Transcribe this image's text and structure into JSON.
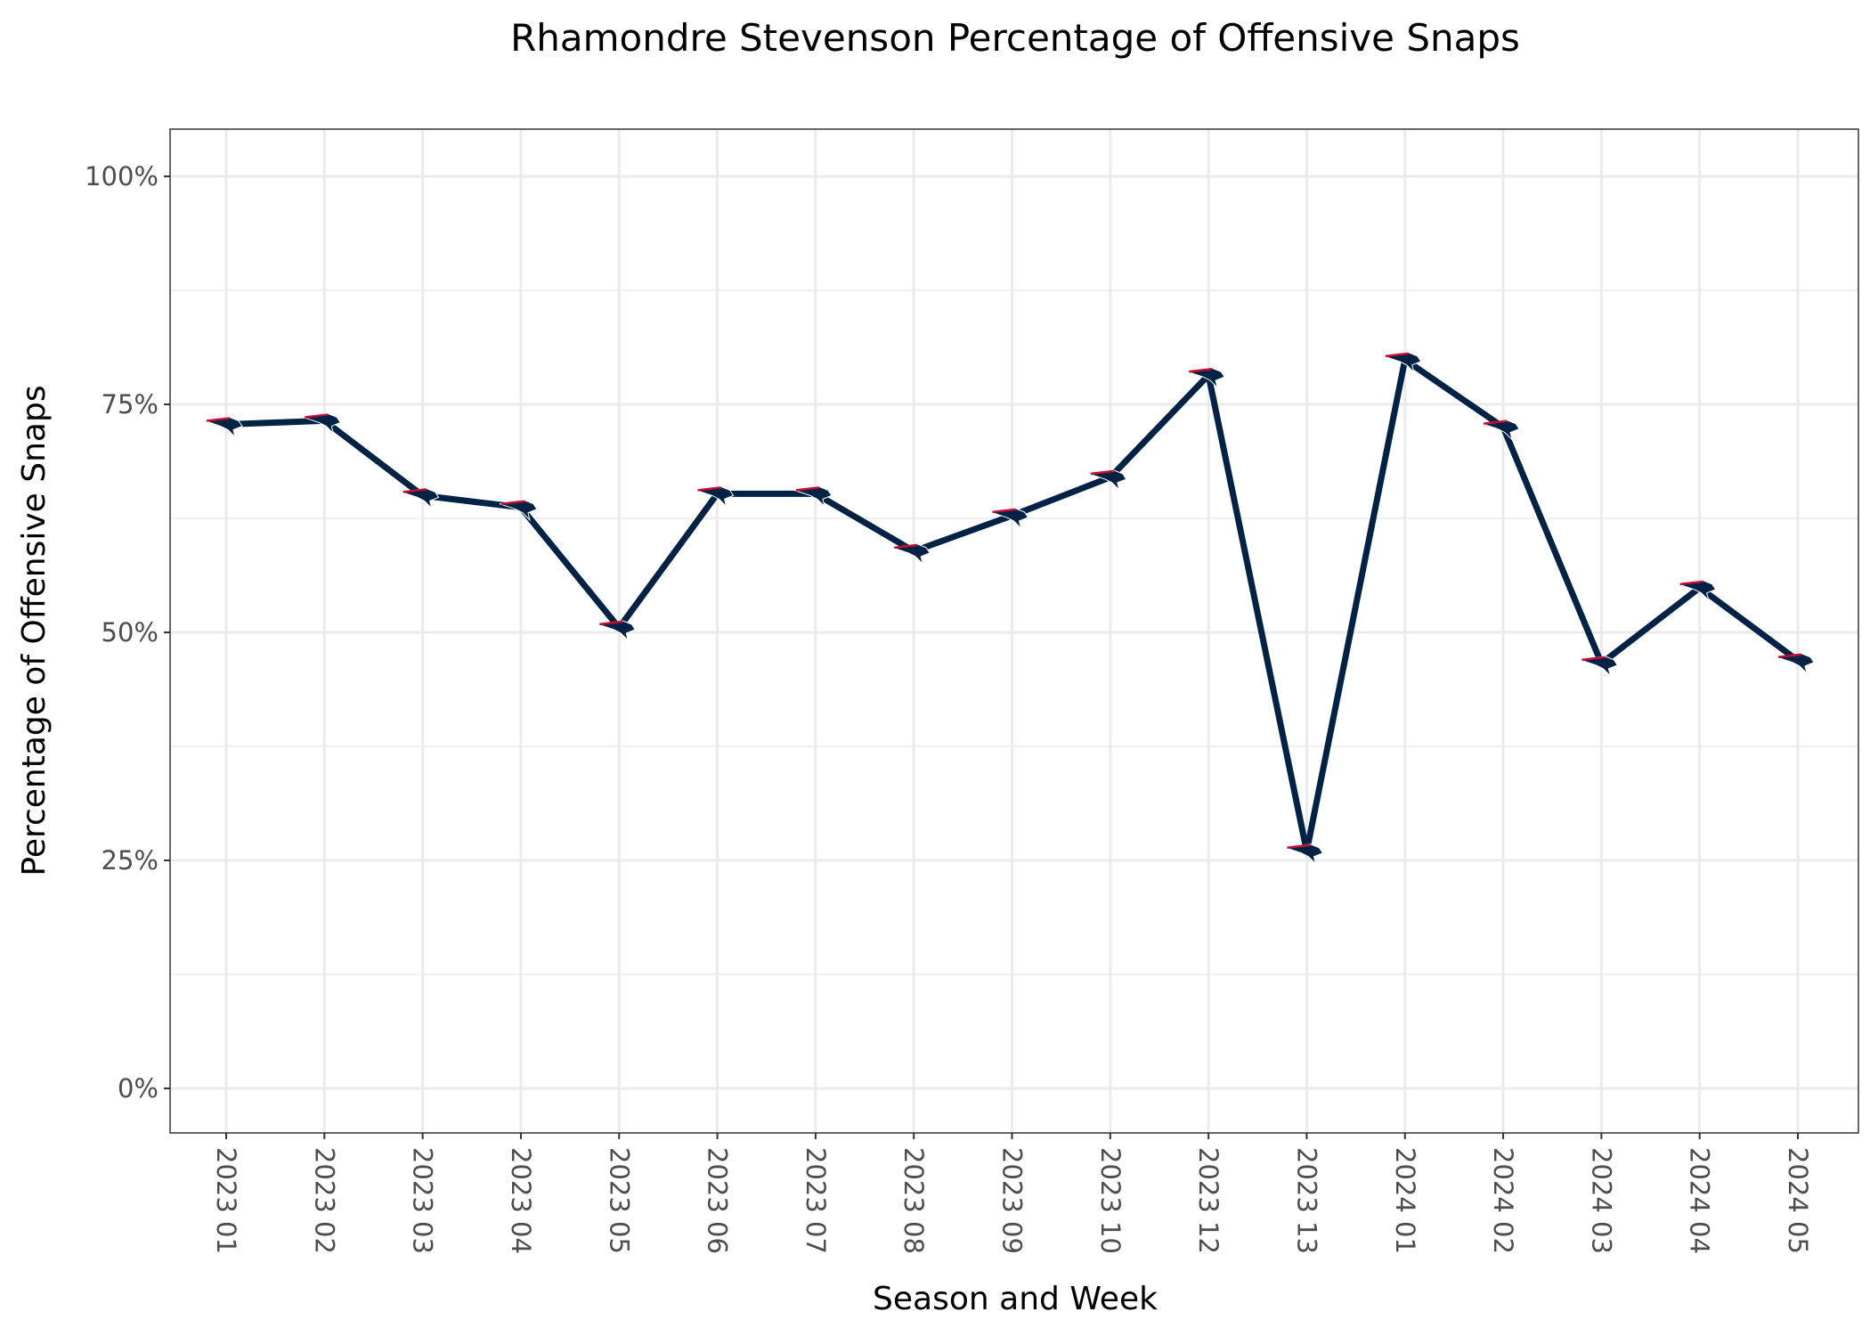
{
  "chart_data": {
    "type": "line",
    "title": "Rhamondre Stevenson Percentage of Offensive Snaps",
    "xlabel": "Season and Week",
    "ylabel": "Percentage of Offensive Snaps",
    "categories": [
      "2023 01",
      "2023 02",
      "2023 03",
      "2023 04",
      "2023 05",
      "2023 06",
      "2023 07",
      "2023 08",
      "2023 09",
      "2023 10",
      "2023 12",
      "2023 13",
      "2024 01",
      "2024 02",
      "2024 03",
      "2024 04",
      "2024 05"
    ],
    "values": [
      72.8,
      73.2,
      65.0,
      63.7,
      50.5,
      65.2,
      65.2,
      58.9,
      62.8,
      67.0,
      78.2,
      26.0,
      79.9,
      72.5,
      46.6,
      54.9,
      46.9
    ],
    "ylim": [
      -5,
      105
    ],
    "yticks": [
      0,
      25,
      50,
      75,
      100
    ],
    "ytick_labels": [
      "0%",
      "25%",
      "50%",
      "75%",
      "100%"
    ],
    "grid": true,
    "line_color": "#002244",
    "marker_accent": "#c60c30"
  }
}
